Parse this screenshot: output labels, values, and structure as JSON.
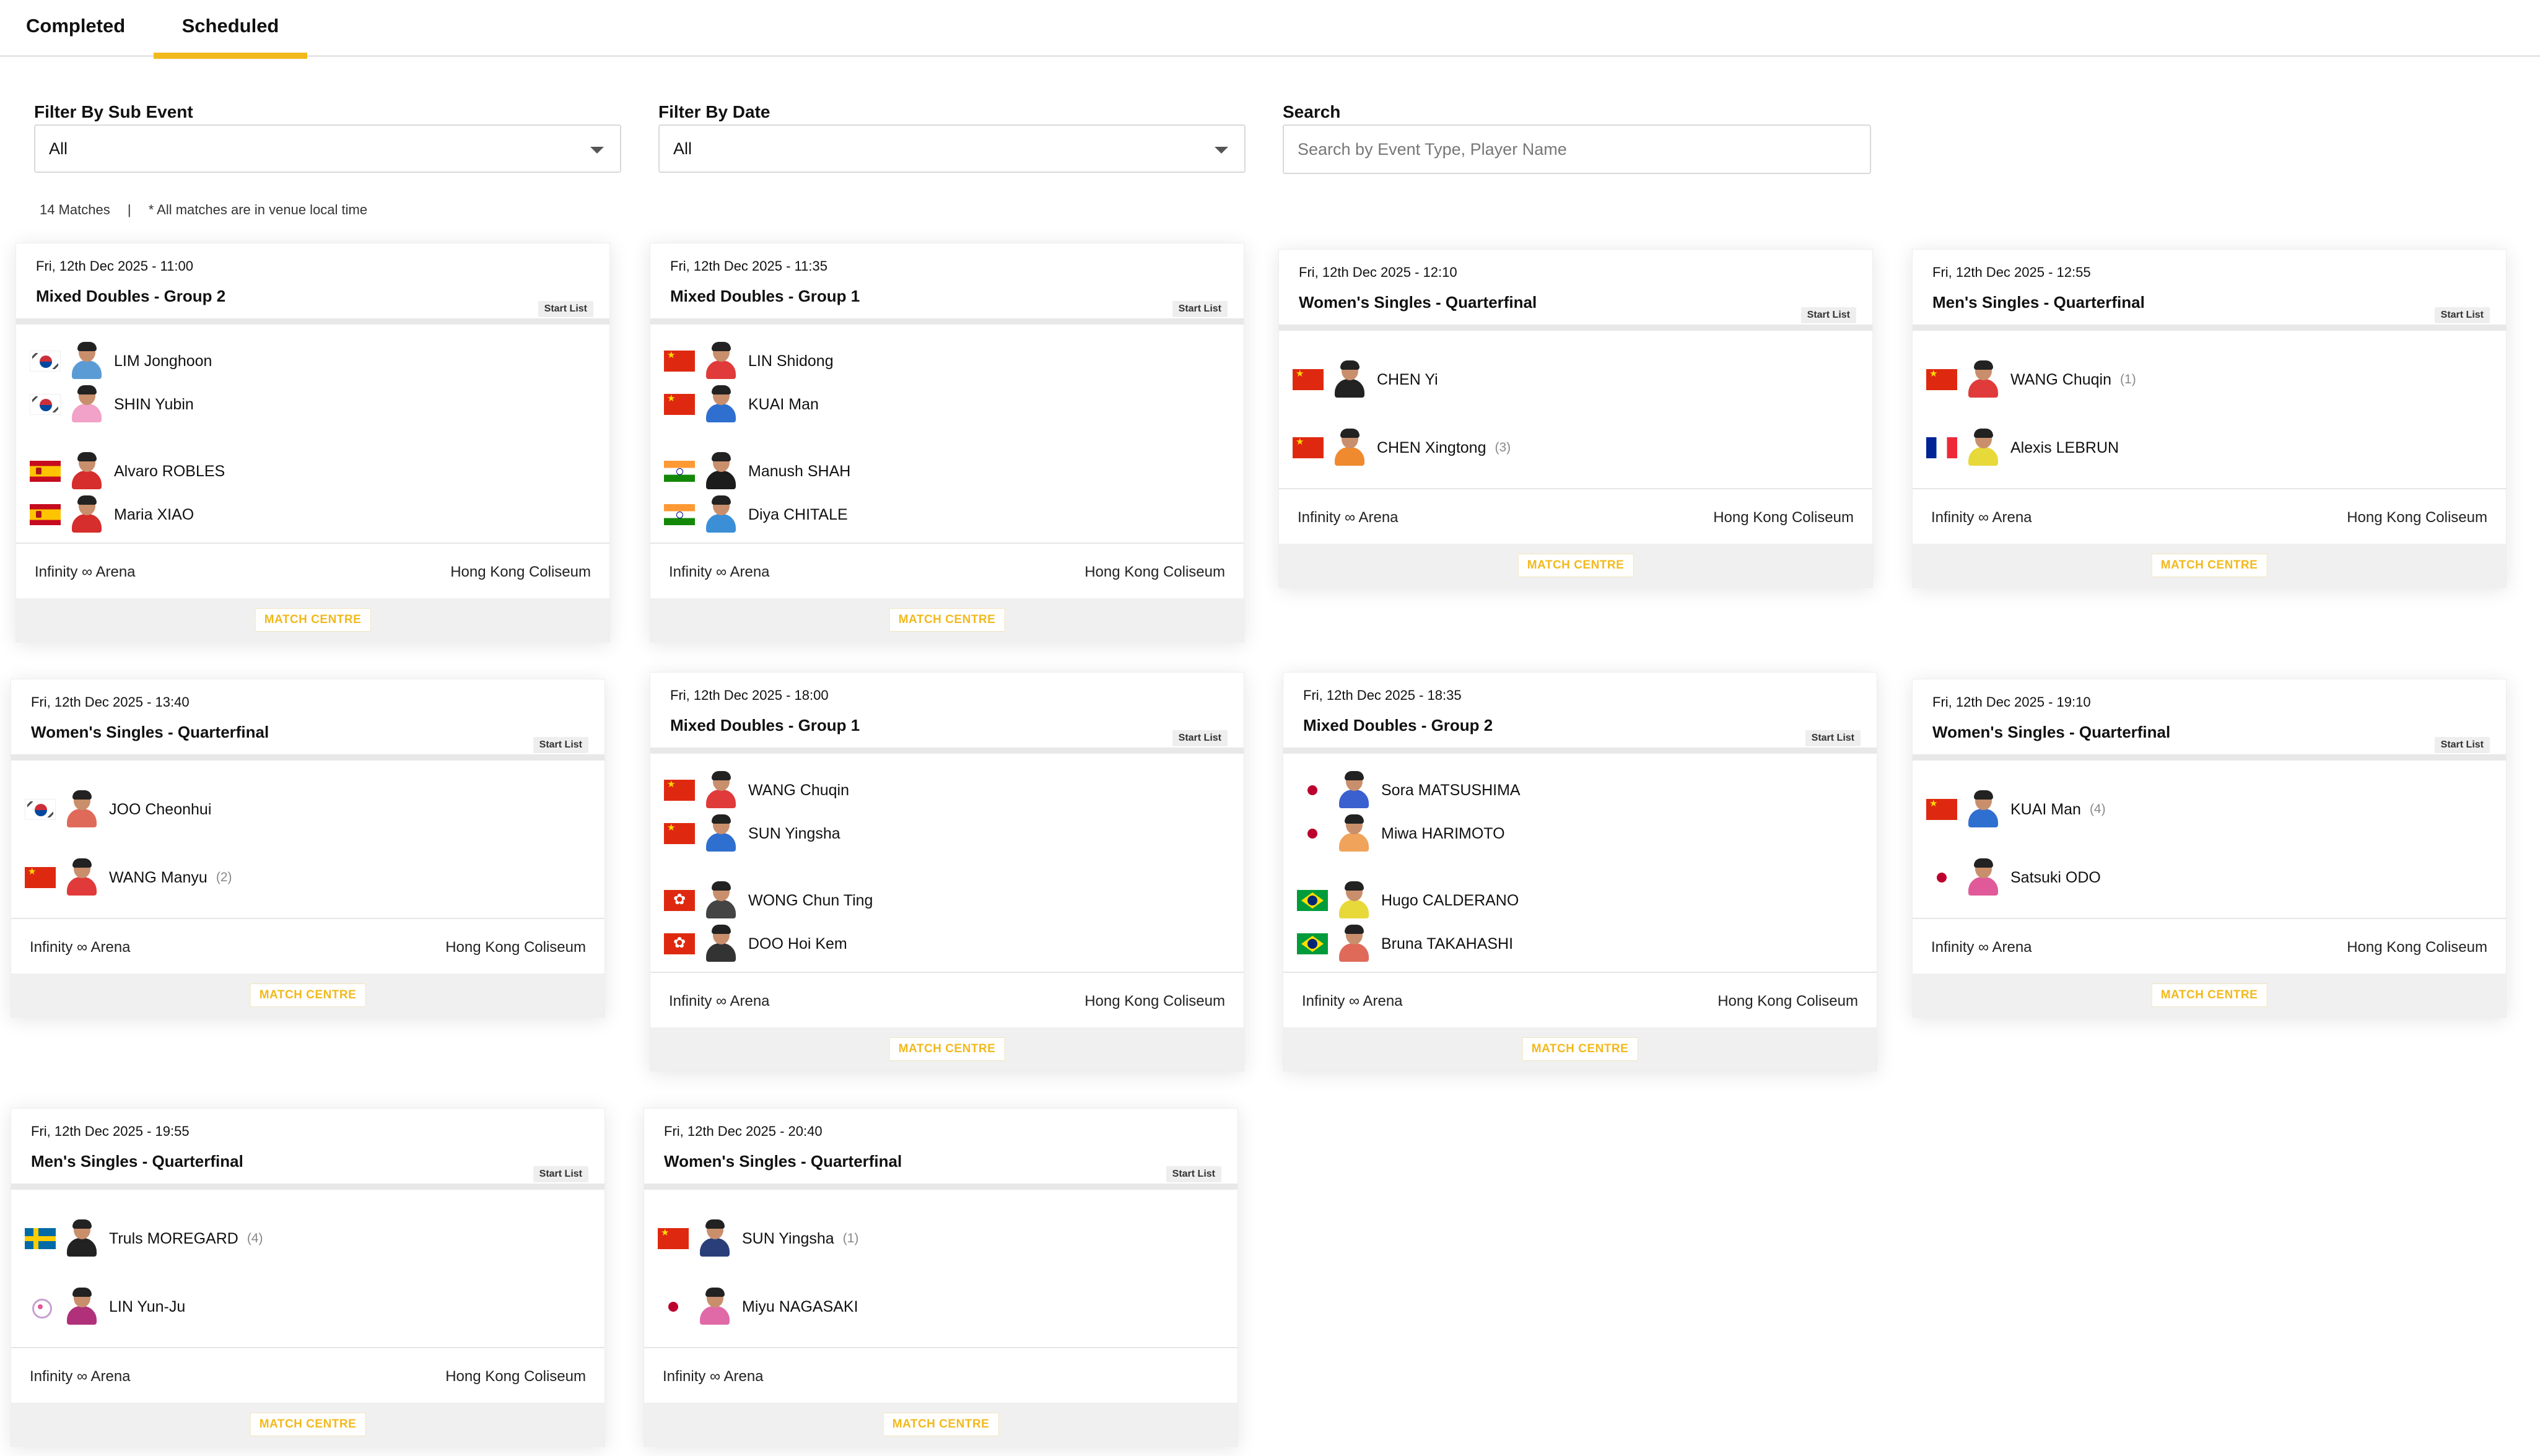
{
  "tabs": [
    {
      "label": "Completed",
      "active": false
    },
    {
      "label": "Scheduled",
      "active": true
    }
  ],
  "colors": {
    "accent": "#f2b91d"
  },
  "filters": {
    "sub_event": {
      "label": "Filter By Sub Event",
      "value": "All"
    },
    "date": {
      "label": "Filter By Date",
      "value": "All"
    },
    "search": {
      "label": "Search",
      "placeholder": "Search by Event Type, Player Name",
      "value": ""
    }
  },
  "summary": {
    "count": "14 Matches",
    "separator": "|",
    "note": "* All matches are in venue local time"
  },
  "start_list_label": "Start List",
  "match_centre_label": "MATCH CENTRE",
  "matches": [
    {
      "datetime": "Fri, 12th Dec 2025 - 11:00",
      "event": "Mixed Doubles - Group 2",
      "type": "doubles",
      "players": [
        {
          "name": "LIM Jonghoon",
          "flag": "kr",
          "seed": "",
          "shirt": "#5b9bd5"
        },
        {
          "name": "SHIN Yubin",
          "flag": "kr",
          "seed": "",
          "shirt": "#f2a2c8"
        },
        {
          "name": "Alvaro ROBLES",
          "flag": "es",
          "seed": "",
          "shirt": "#d62d2d"
        },
        {
          "name": "Maria XIAO",
          "flag": "es",
          "seed": "",
          "shirt": "#d62d2d"
        }
      ],
      "venue_left": "Infinity ∞ Arena",
      "venue_right": "Hong Kong Coliseum"
    },
    {
      "datetime": "Fri, 12th Dec 2025 - 11:35",
      "event": "Mixed Doubles - Group 1",
      "type": "doubles",
      "players": [
        {
          "name": "LIN Shidong",
          "flag": "cn",
          "seed": "",
          "shirt": "#e03a3a"
        },
        {
          "name": "KUAI Man",
          "flag": "cn",
          "seed": "",
          "shirt": "#2f6fcf"
        },
        {
          "name": "Manush SHAH",
          "flag": "in",
          "seed": "",
          "shirt": "#1c1c1c"
        },
        {
          "name": "Diya CHITALE",
          "flag": "in",
          "seed": "",
          "shirt": "#3b8fd6"
        }
      ],
      "venue_left": "Infinity ∞ Arena",
      "venue_right": "Hong Kong Coliseum"
    },
    {
      "datetime": "Fri, 12th Dec 2025 - 12:10",
      "event": "Women's Singles - Quarterfinal",
      "type": "singles",
      "players": [
        {
          "name": "CHEN Yi",
          "flag": "cn",
          "seed": "",
          "shirt": "#222222"
        },
        {
          "name": "CHEN Xingtong",
          "flag": "cn",
          "seed": "(3)",
          "shirt": "#f08a2e"
        }
      ],
      "venue_left": "Infinity ∞ Arena",
      "venue_right": "Hong Kong Coliseum"
    },
    {
      "datetime": "Fri, 12th Dec 2025 - 12:55",
      "event": "Men's Singles - Quarterfinal",
      "type": "singles",
      "players": [
        {
          "name": "WANG Chuqin",
          "flag": "cn",
          "seed": "(1)",
          "shirt": "#e03a3a"
        },
        {
          "name": "Alexis LEBRUN",
          "flag": "fr",
          "seed": "",
          "shirt": "#e8d93a"
        }
      ],
      "venue_left": "Infinity ∞ Arena",
      "venue_right": "Hong Kong Coliseum"
    },
    {
      "datetime": "Fri, 12th Dec 2025 - 13:40",
      "event": "Women's Singles - Quarterfinal",
      "type": "singles",
      "players": [
        {
          "name": "JOO Cheonhui",
          "flag": "kr",
          "seed": "",
          "shirt": "#e06a5a"
        },
        {
          "name": "WANG Manyu",
          "flag": "cn",
          "seed": "(2)",
          "shirt": "#e03a3a"
        }
      ],
      "venue_left": "Infinity ∞ Arena",
      "venue_right": "Hong Kong Coliseum"
    },
    {
      "datetime": "Fri, 12th Dec 2025 - 18:00",
      "event": "Mixed Doubles - Group 1",
      "type": "doubles",
      "players": [
        {
          "name": "WANG Chuqin",
          "flag": "cn",
          "seed": "",
          "shirt": "#e03a3a"
        },
        {
          "name": "SUN Yingsha",
          "flag": "cn",
          "seed": "",
          "shirt": "#2f6fcf"
        },
        {
          "name": "WONG Chun Ting",
          "flag": "hk",
          "seed": "",
          "shirt": "#444444"
        },
        {
          "name": "DOO Hoi Kem",
          "flag": "hk",
          "seed": "",
          "shirt": "#333333"
        }
      ],
      "venue_left": "Infinity ∞ Arena",
      "venue_right": "Hong Kong Coliseum"
    },
    {
      "datetime": "Fri, 12th Dec 2025 - 18:35",
      "event": "Mixed Doubles - Group 2",
      "type": "doubles",
      "players": [
        {
          "name": "Sora MATSUSHIMA",
          "flag": "jp",
          "seed": "",
          "shirt": "#3a5fcf"
        },
        {
          "name": "Miwa HARIMOTO",
          "flag": "jp",
          "seed": "",
          "shirt": "#f0a35a"
        },
        {
          "name": "Hugo CALDERANO",
          "flag": "br",
          "seed": "",
          "shirt": "#e8d93a"
        },
        {
          "name": "Bruna TAKAHASHI",
          "flag": "br",
          "seed": "",
          "shirt": "#e06a5a"
        }
      ],
      "venue_left": "Infinity ∞ Arena",
      "venue_right": "Hong Kong Coliseum"
    },
    {
      "datetime": "Fri, 12th Dec 2025 - 19:10",
      "event": "Women's Singles - Quarterfinal",
      "type": "singles",
      "players": [
        {
          "name": "KUAI Man",
          "flag": "cn",
          "seed": "(4)",
          "shirt": "#2f6fcf"
        },
        {
          "name": "Satsuki ODO",
          "flag": "jp",
          "seed": "",
          "shirt": "#e05a9a"
        }
      ],
      "venue_left": "Infinity ∞ Arena",
      "venue_right": "Hong Kong Coliseum"
    },
    {
      "datetime": "Fri, 12th Dec 2025 - 19:55",
      "event": "Men's Singles - Quarterfinal",
      "type": "singles",
      "players": [
        {
          "name": "Truls MOREGARD",
          "flag": "se",
          "seed": "(4)",
          "shirt": "#222222"
        },
        {
          "name": "LIN Yun-Ju",
          "flag": "tpe",
          "seed": "",
          "shirt": "#b0307a"
        }
      ],
      "venue_left": "Infinity ∞ Arena",
      "venue_right": "Hong Kong Coliseum"
    },
    {
      "datetime": "Fri, 12th Dec 2025 - 20:40",
      "event": "Women's Singles - Quarterfinal",
      "type": "singles",
      "players": [
        {
          "name": "SUN Yingsha",
          "flag": "cn",
          "seed": "(1)",
          "shirt": "#2a3f7a"
        },
        {
          "name": "Miyu NAGASAKI",
          "flag": "jp",
          "seed": "",
          "shirt": "#e06aa8"
        }
      ],
      "venue_left": "Infinity ∞ Arena",
      "venue_right": ""
    }
  ]
}
